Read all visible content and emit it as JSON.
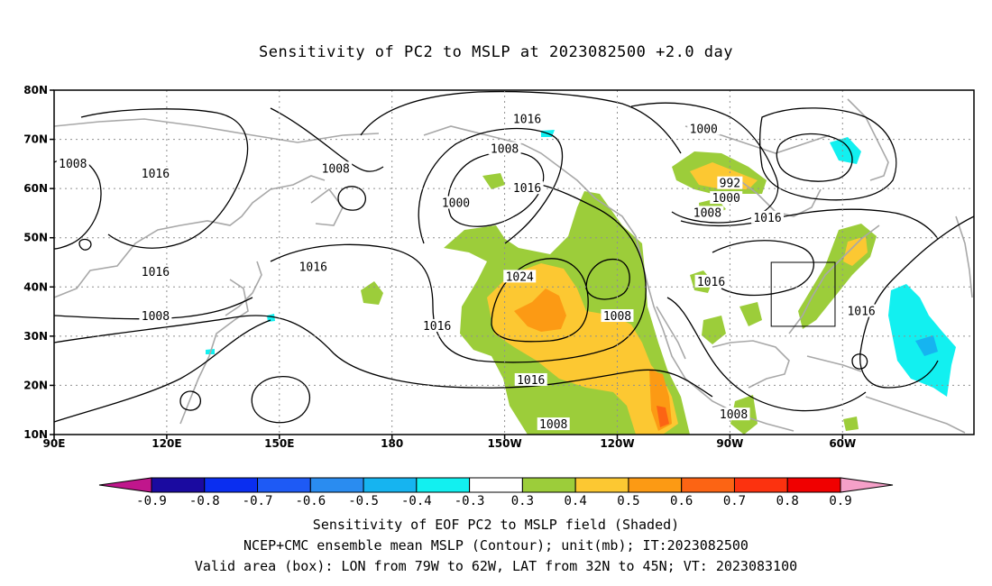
{
  "title": "Sensitivity of PC2 to MSLP at 2023082500 +2.0 day",
  "axes": {
    "lat_labels": [
      "80N",
      "70N",
      "60N",
      "50N",
      "40N",
      "30N",
      "20N",
      "10N"
    ],
    "lon_labels": [
      "90E",
      "120E",
      "150E",
      "180",
      "150W",
      "120W",
      "90W",
      "60W"
    ]
  },
  "contour_labels": [
    {
      "text": "1016",
      "lon": -144,
      "lat": 74
    },
    {
      "text": "1008",
      "lon": -150,
      "lat": 68
    },
    {
      "text": "1000",
      "lon": -97,
      "lat": 72
    },
    {
      "text": "1008",
      "lon": 95,
      "lat": 65
    },
    {
      "text": "1016",
      "lon": 117,
      "lat": 63
    },
    {
      "text": "1008",
      "lon": 165,
      "lat": 64
    },
    {
      "text": "1016",
      "lon": -144,
      "lat": 60
    },
    {
      "text": "1000",
      "lon": -163,
      "lat": 57
    },
    {
      "text": "992",
      "lon": -90,
      "lat": 61
    },
    {
      "text": "1000",
      "lon": -91,
      "lat": 58
    },
    {
      "text": "1008",
      "lon": -96,
      "lat": 55
    },
    {
      "text": "1016",
      "lon": -80,
      "lat": 54
    },
    {
      "text": "1016",
      "lon": 117,
      "lat": 43
    },
    {
      "text": "1016",
      "lon": 159,
      "lat": 44
    },
    {
      "text": "1024",
      "lon": -146,
      "lat": 42
    },
    {
      "text": "1016",
      "lon": -95,
      "lat": 41
    },
    {
      "text": "1016",
      "lon": -55,
      "lat": 35
    },
    {
      "text": "1008",
      "lon": 117,
      "lat": 34
    },
    {
      "text": "1008",
      "lon": -120,
      "lat": 34
    },
    {
      "text": "1016",
      "lon": -168,
      "lat": 32
    },
    {
      "text": "1016",
      "lon": -143,
      "lat": 21
    },
    {
      "text": "1008",
      "lon": -89,
      "lat": 14
    },
    {
      "text": "1008",
      "lon": -137,
      "lat": 12
    }
  ],
  "valid_box": {
    "lon_min": -79,
    "lon_max": -62,
    "lat_min": 32,
    "lat_max": 45
  },
  "colorbar": {
    "labels": [
      "-0.9",
      "-0.8",
      "-0.7",
      "-0.6",
      "-0.5",
      "-0.4",
      "-0.3",
      "0.3",
      "0.4",
      "0.5",
      "0.6",
      "0.7",
      "0.8",
      "0.9"
    ],
    "colors": [
      "#1a0aa0",
      "#0a2ef0",
      "#1e5af5",
      "#2a8cf0",
      "#16b4f0",
      "#12f0f0",
      "#ffffff",
      "#9ccd3a",
      "#fcc832",
      "#fc9a14",
      "#fc6414",
      "#fc320f",
      "#f00000"
    ],
    "low_end_color": "#c0168c",
    "high_end_color": "#f5a0c8"
  },
  "captions": {
    "line1": "Sensitivity of EOF PC2 to MSLP field (Shaded)",
    "line2": "NCEP+CMC ensemble mean MSLP (Contour); unit(mb); IT:2023082500",
    "line3": "Valid area (box): LON from 79W to 62W, LAT from 32N to 45N; VT: 2023083100"
  }
}
